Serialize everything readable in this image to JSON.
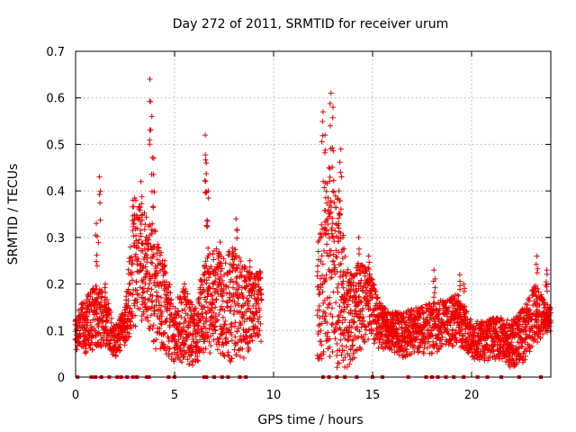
{
  "chart_data": {
    "type": "scatter",
    "title": "Day 272 of 2011, SRMTID for receiver urum",
    "xlabel": "GPS time / hours",
    "ylabel": "SRMTID / TECUs",
    "xlim": [
      0,
      24
    ],
    "ylim": [
      0,
      0.7
    ],
    "xticks": [
      0,
      5,
      10,
      15,
      20
    ],
    "xtick_labels": [
      "0",
      "5",
      "10",
      "15",
      "20"
    ],
    "yticks": [
      0,
      0.1,
      0.2,
      0.3,
      0.4,
      0.5,
      0.6,
      0.7
    ],
    "ytick_labels": [
      "0",
      "0.1",
      "0.2",
      "0.3",
      "0.4",
      "0.5",
      "0.6",
      "0.7"
    ],
    "grid": true,
    "marker": "+",
    "color": "#ee0000",
    "data_gap_hours": [
      9.4,
      12.2
    ],
    "baseline_markers_x": [
      0.1,
      0.8,
      1.0,
      1.3,
      1.7,
      2.1,
      2.3,
      2.6,
      2.9,
      3.1,
      3.6,
      3.7,
      4.7,
      5.0,
      6.5,
      6.6,
      7.0,
      7.4,
      7.7,
      8.3,
      8.6,
      12.5,
      12.8,
      13.2,
      13.6,
      14.2,
      15.0,
      15.5,
      16.8,
      17.7,
      18.0,
      18.3,
      18.7,
      19.1,
      19.6,
      20.3,
      20.8,
      21.5,
      22.4,
      23.5
    ],
    "peaks": [
      {
        "x": 0.0,
        "y": 0.12
      },
      {
        "x": 0.4,
        "y": 0.16
      },
      {
        "x": 1.05,
        "y": 0.33
      },
      {
        "x": 1.2,
        "y": 0.43
      },
      {
        "x": 1.5,
        "y": 0.2
      },
      {
        "x": 2.5,
        "y": 0.15
      },
      {
        "x": 2.9,
        "y": 0.38
      },
      {
        "x": 3.1,
        "y": 0.32
      },
      {
        "x": 3.3,
        "y": 0.42
      },
      {
        "x": 3.75,
        "y": 0.64
      },
      {
        "x": 3.85,
        "y": 0.56
      },
      {
        "x": 3.95,
        "y": 0.47
      },
      {
        "x": 4.5,
        "y": 0.25
      },
      {
        "x": 5.5,
        "y": 0.2
      },
      {
        "x": 6.55,
        "y": 0.52
      },
      {
        "x": 6.6,
        "y": 0.46
      },
      {
        "x": 6.7,
        "y": 0.4
      },
      {
        "x": 7.3,
        "y": 0.29
      },
      {
        "x": 8.1,
        "y": 0.34
      },
      {
        "x": 8.8,
        "y": 0.25
      },
      {
        "x": 12.5,
        "y": 0.57
      },
      {
        "x": 12.6,
        "y": 0.52
      },
      {
        "x": 12.9,
        "y": 0.61
      },
      {
        "x": 13.0,
        "y": 0.58
      },
      {
        "x": 12.8,
        "y": 0.45
      },
      {
        "x": 13.4,
        "y": 0.49
      },
      {
        "x": 13.3,
        "y": 0.4
      },
      {
        "x": 13.5,
        "y": 0.3
      },
      {
        "x": 14.3,
        "y": 0.3
      },
      {
        "x": 14.8,
        "y": 0.26
      },
      {
        "x": 18.1,
        "y": 0.23
      },
      {
        "x": 19.4,
        "y": 0.22
      },
      {
        "x": 19.6,
        "y": 0.2
      },
      {
        "x": 23.3,
        "y": 0.26
      },
      {
        "x": 23.8,
        "y": 0.23
      }
    ],
    "envelope": [
      {
        "x": 0.0,
        "lo": 0.05,
        "hi": 0.14
      },
      {
        "x": 0.5,
        "lo": 0.05,
        "hi": 0.17
      },
      {
        "x": 1.0,
        "lo": 0.06,
        "hi": 0.2
      },
      {
        "x": 1.5,
        "lo": 0.06,
        "hi": 0.18
      },
      {
        "x": 2.0,
        "lo": 0.04,
        "hi": 0.11
      },
      {
        "x": 2.5,
        "lo": 0.07,
        "hi": 0.15
      },
      {
        "x": 3.0,
        "lo": 0.1,
        "hi": 0.4
      },
      {
        "x": 3.5,
        "lo": 0.12,
        "hi": 0.35
      },
      {
        "x": 4.0,
        "lo": 0.06,
        "hi": 0.32
      },
      {
        "x": 4.5,
        "lo": 0.05,
        "hi": 0.24
      },
      {
        "x": 5.0,
        "lo": 0.03,
        "hi": 0.16
      },
      {
        "x": 5.5,
        "lo": 0.03,
        "hi": 0.2
      },
      {
        "x": 6.0,
        "lo": 0.02,
        "hi": 0.15
      },
      {
        "x": 6.5,
        "lo": 0.05,
        "hi": 0.25
      },
      {
        "x": 7.0,
        "lo": 0.05,
        "hi": 0.28
      },
      {
        "x": 7.5,
        "lo": 0.04,
        "hi": 0.27
      },
      {
        "x": 8.0,
        "lo": 0.03,
        "hi": 0.28
      },
      {
        "x": 8.5,
        "lo": 0.03,
        "hi": 0.24
      },
      {
        "x": 9.0,
        "lo": 0.08,
        "hi": 0.22
      },
      {
        "x": 12.3,
        "lo": 0.02,
        "hi": 0.3
      },
      {
        "x": 12.8,
        "lo": 0.02,
        "hi": 0.45
      },
      {
        "x": 13.3,
        "lo": 0.02,
        "hi": 0.38
      },
      {
        "x": 13.8,
        "lo": 0.02,
        "hi": 0.22
      },
      {
        "x": 14.3,
        "lo": 0.05,
        "hi": 0.25
      },
      {
        "x": 14.8,
        "lo": 0.08,
        "hi": 0.24
      },
      {
        "x": 15.3,
        "lo": 0.06,
        "hi": 0.17
      },
      {
        "x": 15.8,
        "lo": 0.06,
        "hi": 0.14
      },
      {
        "x": 16.5,
        "lo": 0.04,
        "hi": 0.14
      },
      {
        "x": 17.2,
        "lo": 0.05,
        "hi": 0.15
      },
      {
        "x": 18.0,
        "lo": 0.05,
        "hi": 0.16
      },
      {
        "x": 18.7,
        "lo": 0.06,
        "hi": 0.17
      },
      {
        "x": 19.3,
        "lo": 0.07,
        "hi": 0.18
      },
      {
        "x": 20.0,
        "lo": 0.04,
        "hi": 0.12
      },
      {
        "x": 20.6,
        "lo": 0.03,
        "hi": 0.12
      },
      {
        "x": 21.3,
        "lo": 0.04,
        "hi": 0.13
      },
      {
        "x": 22.0,
        "lo": 0.02,
        "hi": 0.12
      },
      {
        "x": 22.6,
        "lo": 0.03,
        "hi": 0.15
      },
      {
        "x": 23.2,
        "lo": 0.07,
        "hi": 0.2
      },
      {
        "x": 24.0,
        "lo": 0.1,
        "hi": 0.15
      }
    ]
  }
}
